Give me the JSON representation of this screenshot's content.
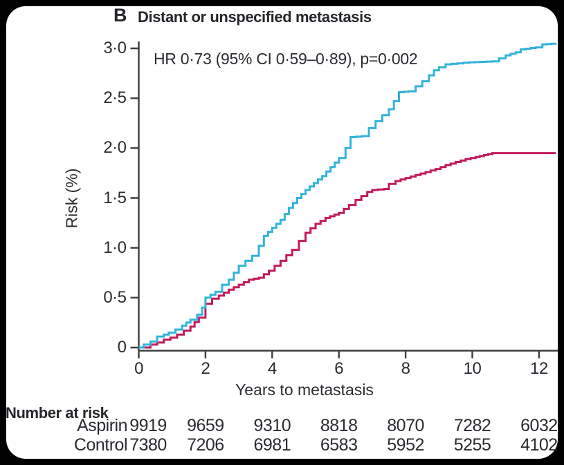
{
  "figure": {
    "panel_label": "B",
    "title": "Distant or unspecified metastasis",
    "annotation": "HR 0·73 (95% CI 0·59–0·89), p=0·002"
  },
  "chart_data": {
    "type": "line",
    "subtype": "kaplan-meier-step-curve",
    "title": "Distant or unspecified metastasis",
    "xlabel": "Years to metastasis",
    "ylabel": "Risk (%)",
    "xlim": [
      0,
      12.7
    ],
    "ylim": [
      0,
      3.1
    ],
    "x_ticks": [
      0,
      2,
      4,
      6,
      8,
      10,
      12
    ],
    "x_tick_labels": [
      "0",
      "2",
      "4",
      "6",
      "8",
      "10",
      "12"
    ],
    "y_ticks": [
      0,
      0.5,
      1.0,
      1.5,
      2.0,
      2.5,
      3.0
    ],
    "y_tick_labels": [
      "0",
      "0·5",
      "1·0",
      "1·5",
      "2·0",
      "2·5",
      "3·0"
    ],
    "grid": false,
    "legend": "none",
    "annotation": "HR 0·73 (95% CI 0·59–0·89), p=0·002",
    "series": [
      {
        "name": "Aspirin",
        "color": "#c11a5b",
        "final_value": 1.95,
        "points": [
          [
            0,
            0
          ],
          [
            0.2,
            0
          ],
          [
            0.35,
            0.03
          ],
          [
            0.55,
            0.05
          ],
          [
            0.75,
            0.08
          ],
          [
            0.95,
            0.1
          ],
          [
            1.15,
            0.13
          ],
          [
            1.35,
            0.17
          ],
          [
            1.55,
            0.21
          ],
          [
            1.8,
            0.3
          ],
          [
            2.0,
            0.44
          ],
          [
            2.2,
            0.49
          ],
          [
            2.4,
            0.52
          ],
          [
            2.7,
            0.58
          ],
          [
            3.0,
            0.63
          ],
          [
            3.3,
            0.68
          ],
          [
            3.6,
            0.7
          ],
          [
            3.9,
            0.77
          ],
          [
            4.25,
            0.87
          ],
          [
            4.6,
            0.98
          ],
          [
            4.8,
            1.07
          ],
          [
            5.0,
            1.15
          ],
          [
            5.3,
            1.24
          ],
          [
            5.6,
            1.3
          ],
          [
            6.0,
            1.35
          ],
          [
            6.3,
            1.43
          ],
          [
            6.5,
            1.48
          ],
          [
            6.85,
            1.56
          ],
          [
            7.0,
            1.58
          ],
          [
            7.35,
            1.59
          ],
          [
            7.5,
            1.64
          ],
          [
            7.7,
            1.67
          ],
          [
            8.0,
            1.7
          ],
          [
            8.3,
            1.73
          ],
          [
            8.6,
            1.76
          ],
          [
            8.9,
            1.79
          ],
          [
            9.2,
            1.83
          ],
          [
            9.5,
            1.86
          ],
          [
            9.8,
            1.89
          ],
          [
            10.1,
            1.91
          ],
          [
            10.35,
            1.93
          ],
          [
            10.6,
            1.95
          ],
          [
            12.5,
            1.95
          ]
        ]
      },
      {
        "name": "Control",
        "color": "#33b3db",
        "final_value": 3.05,
        "points": [
          [
            0,
            0
          ],
          [
            0.15,
            0.03
          ],
          [
            0.35,
            0.06
          ],
          [
            0.55,
            0.11
          ],
          [
            0.75,
            0.13
          ],
          [
            0.9,
            0.15
          ],
          [
            1.1,
            0.18
          ],
          [
            1.3,
            0.22
          ],
          [
            1.55,
            0.28
          ],
          [
            1.75,
            0.33
          ],
          [
            1.9,
            0.4
          ],
          [
            2.0,
            0.5
          ],
          [
            2.3,
            0.56
          ],
          [
            2.5,
            0.63
          ],
          [
            2.7,
            0.68
          ],
          [
            2.85,
            0.75
          ],
          [
            3.0,
            0.82
          ],
          [
            3.2,
            0.87
          ],
          [
            3.4,
            0.92
          ],
          [
            3.6,
            1.02
          ],
          [
            3.75,
            1.12
          ],
          [
            4.0,
            1.2
          ],
          [
            4.25,
            1.28
          ],
          [
            4.5,
            1.4
          ],
          [
            4.75,
            1.5
          ],
          [
            5.0,
            1.58
          ],
          [
            5.25,
            1.65
          ],
          [
            5.5,
            1.72
          ],
          [
            5.75,
            1.81
          ],
          [
            6.0,
            1.9
          ],
          [
            6.2,
            2.0
          ],
          [
            6.35,
            2.11
          ],
          [
            6.7,
            2.12
          ],
          [
            6.9,
            2.2
          ],
          [
            7.1,
            2.27
          ],
          [
            7.3,
            2.33
          ],
          [
            7.5,
            2.39
          ],
          [
            7.65,
            2.47
          ],
          [
            7.8,
            2.56
          ],
          [
            8.1,
            2.57
          ],
          [
            8.3,
            2.62
          ],
          [
            8.5,
            2.67
          ],
          [
            8.7,
            2.73
          ],
          [
            8.85,
            2.78
          ],
          [
            9.0,
            2.81
          ],
          [
            9.2,
            2.84
          ],
          [
            9.9,
            2.86
          ],
          [
            10.6,
            2.87
          ],
          [
            10.8,
            2.9
          ],
          [
            11.0,
            2.93
          ],
          [
            11.3,
            2.96
          ],
          [
            11.45,
            2.99
          ],
          [
            11.9,
            3.01
          ],
          [
            12.1,
            3.04
          ],
          [
            12.5,
            3.05
          ]
        ]
      }
    ]
  },
  "risk_table": {
    "header": "Number at risk",
    "years": [
      0,
      2,
      4,
      6,
      8,
      10,
      12
    ],
    "rows": [
      {
        "label": "Aspirin",
        "values": [
          "9919",
          "9659",
          "9310",
          "8818",
          "8070",
          "7282",
          "6032"
        ]
      },
      {
        "label": "Control",
        "values": [
          "7380",
          "7206",
          "6981",
          "6583",
          "5952",
          "5255",
          "4102"
        ]
      }
    ]
  },
  "style": {
    "frame_color": "#000000",
    "panel_color": "#ffffff",
    "axis_color": "#3d3d3d",
    "text_color": "#2b2b31",
    "control_color": "#33b3db",
    "aspirin_color": "#c11a5b"
  }
}
